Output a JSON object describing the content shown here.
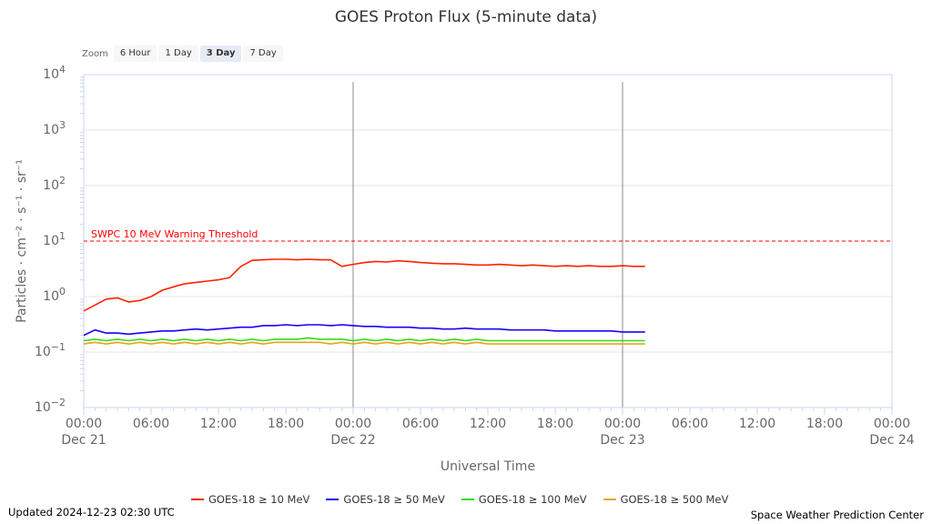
{
  "chart_data": {
    "type": "line",
    "title": "GOES Proton Flux (5-minute data)",
    "xlabel": "Universal Time",
    "ylabel": "Particles · cm⁻² · s⁻¹ · sr⁻¹",
    "yscale": "log",
    "ylim": [
      0.01,
      10000
    ],
    "y_ticks": [
      {
        "base": "10",
        "exp": "4"
      },
      {
        "base": "10",
        "exp": "3"
      },
      {
        "base": "10",
        "exp": "2"
      },
      {
        "base": "10",
        "exp": "1"
      },
      {
        "base": "10",
        "exp": "0"
      },
      {
        "base": "10",
        "exp": "−1"
      },
      {
        "base": "10",
        "exp": "−2"
      }
    ],
    "xlim_hours": [
      0,
      72
    ],
    "x_ticks": [
      {
        "time": "00:00",
        "date": "Dec 21"
      },
      {
        "time": "06:00",
        "date": ""
      },
      {
        "time": "12:00",
        "date": ""
      },
      {
        "time": "18:00",
        "date": ""
      },
      {
        "time": "00:00",
        "date": "Dec 22"
      },
      {
        "time": "06:00",
        "date": ""
      },
      {
        "time": "12:00",
        "date": ""
      },
      {
        "time": "18:00",
        "date": ""
      },
      {
        "time": "00:00",
        "date": "Dec 23"
      },
      {
        "time": "06:00",
        "date": ""
      },
      {
        "time": "12:00",
        "date": ""
      },
      {
        "time": "18:00",
        "date": ""
      },
      {
        "time": "00:00",
        "date": "Dec 24"
      }
    ],
    "day_boundaries_hours": [
      24,
      48
    ],
    "threshold": {
      "value": 10,
      "label": "SWPC 10 MeV Warning Threshold",
      "color": "#ff0000"
    },
    "series": [
      {
        "name": "GOES-18 ≥ 10 MeV",
        "color": "#ff2200",
        "x_hours": [
          0,
          1,
          2,
          3,
          4,
          5,
          6,
          7,
          8,
          9,
          10,
          11,
          12,
          13,
          14,
          15,
          16,
          17,
          18,
          19,
          20,
          21,
          22,
          23,
          24,
          25,
          26,
          27,
          28,
          29,
          30,
          31,
          32,
          33,
          34,
          35,
          36,
          37,
          38,
          39,
          40,
          41,
          42,
          43,
          44,
          45,
          46,
          47,
          48,
          49,
          50
        ],
        "values": [
          0.55,
          0.7,
          0.9,
          0.95,
          0.8,
          0.85,
          1.0,
          1.3,
          1.5,
          1.7,
          1.8,
          1.9,
          2.0,
          2.2,
          3.5,
          4.5,
          4.6,
          4.7,
          4.7,
          4.6,
          4.7,
          4.6,
          4.6,
          3.5,
          3.8,
          4.1,
          4.3,
          4.2,
          4.4,
          4.3,
          4.1,
          4.0,
          3.9,
          3.9,
          3.8,
          3.7,
          3.7,
          3.8,
          3.7,
          3.6,
          3.7,
          3.6,
          3.5,
          3.6,
          3.5,
          3.6,
          3.5,
          3.5,
          3.6,
          3.5,
          3.5
        ]
      },
      {
        "name": "GOES-18 ≥ 50 MeV",
        "color": "#1a00ff",
        "x_hours": [
          0,
          1,
          2,
          3,
          4,
          5,
          6,
          7,
          8,
          9,
          10,
          11,
          12,
          13,
          14,
          15,
          16,
          17,
          18,
          19,
          20,
          21,
          22,
          23,
          24,
          25,
          26,
          27,
          28,
          29,
          30,
          31,
          32,
          33,
          34,
          35,
          36,
          37,
          38,
          39,
          40,
          41,
          42,
          43,
          44,
          45,
          46,
          47,
          48,
          49,
          50
        ],
        "values": [
          0.2,
          0.25,
          0.22,
          0.22,
          0.21,
          0.22,
          0.23,
          0.24,
          0.24,
          0.25,
          0.26,
          0.25,
          0.26,
          0.27,
          0.28,
          0.28,
          0.3,
          0.3,
          0.31,
          0.3,
          0.31,
          0.31,
          0.3,
          0.31,
          0.3,
          0.29,
          0.29,
          0.28,
          0.28,
          0.28,
          0.27,
          0.27,
          0.26,
          0.26,
          0.27,
          0.26,
          0.26,
          0.26,
          0.25,
          0.25,
          0.25,
          0.25,
          0.24,
          0.24,
          0.24,
          0.24,
          0.24,
          0.24,
          0.23,
          0.23,
          0.23
        ]
      },
      {
        "name": "GOES-18 ≥ 100 MeV",
        "color": "#33dd11",
        "x_hours": [
          0,
          1,
          2,
          3,
          4,
          5,
          6,
          7,
          8,
          9,
          10,
          11,
          12,
          13,
          14,
          15,
          16,
          17,
          18,
          19,
          20,
          21,
          22,
          23,
          24,
          25,
          26,
          27,
          28,
          29,
          30,
          31,
          32,
          33,
          34,
          35,
          36,
          37,
          38,
          39,
          40,
          41,
          42,
          43,
          44,
          45,
          46,
          47,
          48,
          49,
          50
        ],
        "values": [
          0.16,
          0.17,
          0.16,
          0.17,
          0.16,
          0.17,
          0.16,
          0.17,
          0.16,
          0.17,
          0.16,
          0.17,
          0.16,
          0.17,
          0.16,
          0.17,
          0.16,
          0.17,
          0.17,
          0.17,
          0.18,
          0.17,
          0.17,
          0.17,
          0.16,
          0.17,
          0.16,
          0.17,
          0.16,
          0.17,
          0.16,
          0.17,
          0.16,
          0.17,
          0.16,
          0.17,
          0.16,
          0.16,
          0.16,
          0.16,
          0.16,
          0.16,
          0.16,
          0.16,
          0.16,
          0.16,
          0.16,
          0.16,
          0.16,
          0.16,
          0.16
        ]
      },
      {
        "name": "GOES-18 ≥ 500 MeV",
        "color": "#e8a317",
        "x_hours": [
          0,
          1,
          2,
          3,
          4,
          5,
          6,
          7,
          8,
          9,
          10,
          11,
          12,
          13,
          14,
          15,
          16,
          17,
          18,
          19,
          20,
          21,
          22,
          23,
          24,
          25,
          26,
          27,
          28,
          29,
          30,
          31,
          32,
          33,
          34,
          35,
          36,
          37,
          38,
          39,
          40,
          41,
          42,
          43,
          44,
          45,
          46,
          47,
          48,
          49,
          50
        ],
        "values": [
          0.14,
          0.15,
          0.14,
          0.15,
          0.14,
          0.15,
          0.14,
          0.15,
          0.14,
          0.15,
          0.14,
          0.15,
          0.14,
          0.15,
          0.14,
          0.15,
          0.14,
          0.15,
          0.15,
          0.15,
          0.15,
          0.15,
          0.14,
          0.15,
          0.14,
          0.15,
          0.14,
          0.15,
          0.14,
          0.15,
          0.14,
          0.15,
          0.14,
          0.15,
          0.14,
          0.15,
          0.14,
          0.14,
          0.14,
          0.14,
          0.14,
          0.14,
          0.14,
          0.14,
          0.14,
          0.14,
          0.14,
          0.14,
          0.14,
          0.14,
          0.14
        ]
      }
    ]
  },
  "zoom": {
    "label": "Zoom",
    "options": [
      "6 Hour",
      "1 Day",
      "3 Day",
      "7 Day"
    ],
    "selected": "3 Day"
  },
  "footer": {
    "updated": "Updated 2024-12-23 02:30 UTC",
    "credit": "Space Weather Prediction Center"
  },
  "colors": {
    "axis": "#ccd6eb",
    "grid": "#e6e6e6",
    "day_line": "#888888",
    "text": "#333333",
    "label": "#666666"
  }
}
